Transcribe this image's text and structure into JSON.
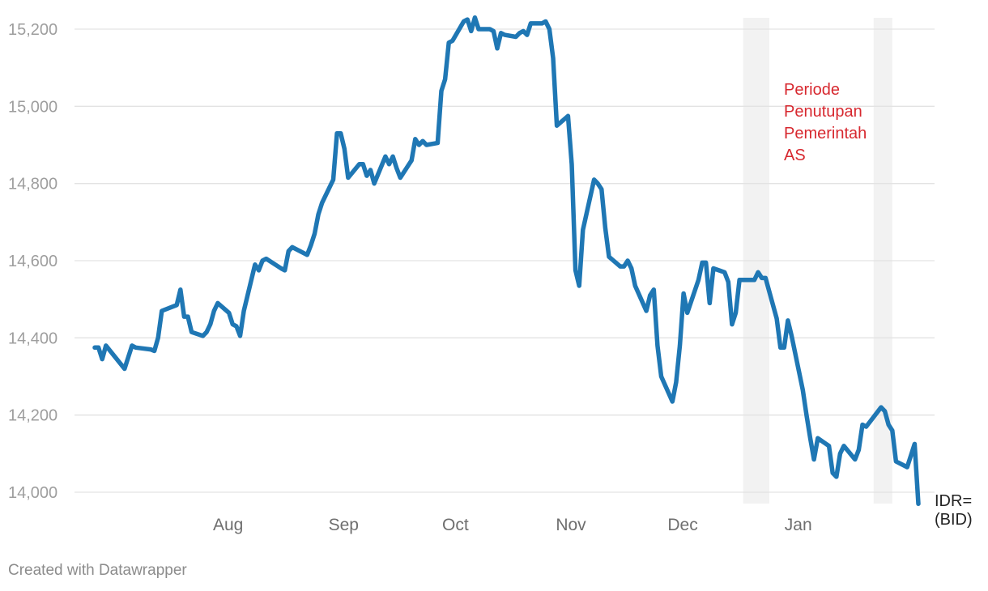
{
  "chart_data": {
    "type": "line",
    "title": "",
    "xlabel": "",
    "ylabel": "",
    "ylim": [
      13970,
      15230
    ],
    "y_ticks": [
      {
        "value": 15200,
        "label": "15,200"
      },
      {
        "value": 15000,
        "label": "15,000"
      },
      {
        "value": 14800,
        "label": "14,800"
      },
      {
        "value": 14600,
        "label": "14,600"
      },
      {
        "value": 14400,
        "label": "14,400"
      },
      {
        "value": 14200,
        "label": "14,200"
      },
      {
        "value": 14000,
        "label": "14,000"
      }
    ],
    "x_ticks": [
      {
        "date": "2018-08-01",
        "label": "Aug"
      },
      {
        "date": "2018-09-01",
        "label": "Sep"
      },
      {
        "date": "2018-10-01",
        "label": "Oct"
      },
      {
        "date": "2018-11-01",
        "label": "Nov"
      },
      {
        "date": "2018-12-01",
        "label": "Dec"
      },
      {
        "date": "2019-01-01",
        "label": "Jan"
      }
    ],
    "grid": true,
    "series": [
      {
        "name": "IDR=\n(BID)",
        "color": "#1f77b4",
        "points": [
          [
            "2018-07-01",
            14375
          ],
          [
            "2018-07-02",
            14375
          ],
          [
            "2018-07-03",
            14345
          ],
          [
            "2018-07-04",
            14380
          ],
          [
            "2018-07-05",
            14368
          ],
          [
            "2018-07-09",
            14320
          ],
          [
            "2018-07-10",
            14350
          ],
          [
            "2018-07-11",
            14380
          ],
          [
            "2018-07-12",
            14375
          ],
          [
            "2018-07-16",
            14370
          ],
          [
            "2018-07-17",
            14366
          ],
          [
            "2018-07-18",
            14400
          ],
          [
            "2018-07-19",
            14470
          ],
          [
            "2018-07-23",
            14485
          ],
          [
            "2018-07-24",
            14525
          ],
          [
            "2018-07-25",
            14455
          ],
          [
            "2018-07-26",
            14455
          ],
          [
            "2018-07-27",
            14415
          ],
          [
            "2018-07-30",
            14405
          ],
          [
            "2018-07-31",
            14415
          ],
          [
            "2018-08-01",
            14435
          ],
          [
            "2018-08-02",
            14470
          ],
          [
            "2018-08-03",
            14490
          ],
          [
            "2018-08-06",
            14465
          ],
          [
            "2018-08-07",
            14435
          ],
          [
            "2018-08-08",
            14430
          ],
          [
            "2018-08-09",
            14405
          ],
          [
            "2018-08-10",
            14470
          ],
          [
            "2018-08-13",
            14590
          ],
          [
            "2018-08-14",
            14575
          ],
          [
            "2018-08-15",
            14600
          ],
          [
            "2018-08-16",
            14605
          ],
          [
            "2018-08-20",
            14580
          ],
          [
            "2018-08-21",
            14575
          ],
          [
            "2018-08-22",
            14625
          ],
          [
            "2018-08-23",
            14635
          ],
          [
            "2018-08-24",
            14630
          ],
          [
            "2018-08-27",
            14615
          ],
          [
            "2018-08-28",
            14640
          ],
          [
            "2018-08-29",
            14670
          ],
          [
            "2018-08-30",
            14720
          ],
          [
            "2018-08-31",
            14750
          ],
          [
            "2018-09-03",
            14810
          ],
          [
            "2018-09-04",
            14930
          ],
          [
            "2018-09-05",
            14930
          ],
          [
            "2018-09-06",
            14890
          ],
          [
            "2018-09-07",
            14815
          ],
          [
            "2018-09-10",
            14850
          ],
          [
            "2018-09-11",
            14850
          ],
          [
            "2018-09-12",
            14820
          ],
          [
            "2018-09-13",
            14835
          ],
          [
            "2018-09-14",
            14800
          ],
          [
            "2018-09-17",
            14870
          ],
          [
            "2018-09-18",
            14850
          ],
          [
            "2018-09-19",
            14870
          ],
          [
            "2018-09-20",
            14840
          ],
          [
            "2018-09-21",
            14815
          ],
          [
            "2018-09-24",
            14860
          ],
          [
            "2018-09-25",
            14915
          ],
          [
            "2018-09-26",
            14900
          ],
          [
            "2018-09-27",
            14910
          ],
          [
            "2018-09-28",
            14900
          ],
          [
            "2018-10-01",
            14905
          ],
          [
            "2018-10-02",
            15040
          ],
          [
            "2018-10-03",
            15070
          ],
          [
            "2018-10-04",
            15165
          ],
          [
            "2018-10-05",
            15170
          ],
          [
            "2018-10-08",
            15220
          ],
          [
            "2018-10-09",
            15225
          ],
          [
            "2018-10-10",
            15195
          ],
          [
            "2018-10-11",
            15230
          ],
          [
            "2018-10-12",
            15200
          ],
          [
            "2018-10-15",
            15200
          ],
          [
            "2018-10-16",
            15195
          ],
          [
            "2018-10-17",
            15150
          ],
          [
            "2018-10-18",
            15190
          ],
          [
            "2018-10-19",
            15185
          ],
          [
            "2018-10-22",
            15180
          ],
          [
            "2018-10-23",
            15190
          ],
          [
            "2018-10-24",
            15195
          ],
          [
            "2018-10-25",
            15185
          ],
          [
            "2018-10-26",
            15215
          ],
          [
            "2018-10-29",
            15215
          ],
          [
            "2018-10-30",
            15220
          ],
          [
            "2018-10-31",
            15200
          ],
          [
            "2018-11-01",
            15125
          ],
          [
            "2018-11-02",
            14950
          ],
          [
            "2018-11-05",
            14975
          ],
          [
            "2018-11-06",
            14850
          ],
          [
            "2018-11-07",
            14575
          ],
          [
            "2018-11-08",
            14535
          ],
          [
            "2018-11-09",
            14680
          ],
          [
            "2018-11-12",
            14810
          ],
          [
            "2018-11-13",
            14800
          ],
          [
            "2018-11-14",
            14785
          ],
          [
            "2018-11-15",
            14685
          ],
          [
            "2018-11-16",
            14610
          ],
          [
            "2018-11-19",
            14585
          ],
          [
            "2018-11-20",
            14585
          ],
          [
            "2018-11-21",
            14600
          ],
          [
            "2018-11-22",
            14580
          ],
          [
            "2018-11-23",
            14535
          ],
          [
            "2018-11-26",
            14470
          ],
          [
            "2018-11-27",
            14510
          ],
          [
            "2018-11-28",
            14525
          ],
          [
            "2018-11-29",
            14380
          ],
          [
            "2018-11-30",
            14300
          ],
          [
            "2018-12-03",
            14235
          ],
          [
            "2018-12-04",
            14285
          ],
          [
            "2018-12-05",
            14380
          ],
          [
            "2018-12-06",
            14515
          ],
          [
            "2018-12-07",
            14465
          ],
          [
            "2018-12-10",
            14550
          ],
          [
            "2018-12-11",
            14595
          ],
          [
            "2018-12-12",
            14595
          ],
          [
            "2018-12-13",
            14490
          ],
          [
            "2018-12-14",
            14580
          ],
          [
            "2018-12-17",
            14570
          ],
          [
            "2018-12-18",
            14545
          ],
          [
            "2018-12-19",
            14435
          ],
          [
            "2018-12-20",
            14465
          ],
          [
            "2018-12-21",
            14550
          ],
          [
            "2018-12-24",
            14550
          ],
          [
            "2018-12-25",
            14550
          ],
          [
            "2018-12-26",
            14570
          ],
          [
            "2018-12-27",
            14555
          ],
          [
            "2018-12-28",
            14555
          ],
          [
            "2018-12-31",
            14450
          ],
          [
            "2019-01-01",
            14375
          ],
          [
            "2019-01-02",
            14375
          ],
          [
            "2019-01-03",
            14445
          ],
          [
            "2019-01-04",
            14405
          ],
          [
            "2019-01-07",
            14265
          ],
          [
            "2019-01-08",
            14200
          ],
          [
            "2019-01-09",
            14140
          ],
          [
            "2019-01-10",
            14085
          ],
          [
            "2019-01-11",
            14140
          ],
          [
            "2019-01-14",
            14120
          ],
          [
            "2019-01-15",
            14050
          ],
          [
            "2019-01-16",
            14040
          ],
          [
            "2019-01-17",
            14100
          ],
          [
            "2019-01-18",
            14120
          ],
          [
            "2019-01-21",
            14085
          ],
          [
            "2019-01-22",
            14110
          ],
          [
            "2019-01-23",
            14175
          ],
          [
            "2019-01-24",
            14170
          ],
          [
            "2019-01-28",
            14220
          ],
          [
            "2019-01-29",
            14210
          ],
          [
            "2019-01-30",
            14175
          ],
          [
            "2019-01-31",
            14160
          ],
          [
            "2019-02-01",
            14080
          ],
          [
            "2019-02-04",
            14065
          ],
          [
            "2019-02-05",
            14095
          ],
          [
            "2019-02-06",
            14125
          ],
          [
            "2019-02-07",
            13970
          ]
        ]
      }
    ],
    "shaded_periods": [
      {
        "start": "2018-12-22",
        "end": "2018-12-29"
      },
      {
        "start": "2019-01-26",
        "end": "2019-01-31"
      }
    ],
    "annotation": {
      "lines": [
        "Periode",
        "Penutupan",
        "Pemerintah",
        "AS"
      ],
      "color": "#d7282f"
    },
    "series_label": [
      "IDR=",
      "(BID)"
    ]
  },
  "footer": {
    "credit": "Created with Datawrapper"
  }
}
